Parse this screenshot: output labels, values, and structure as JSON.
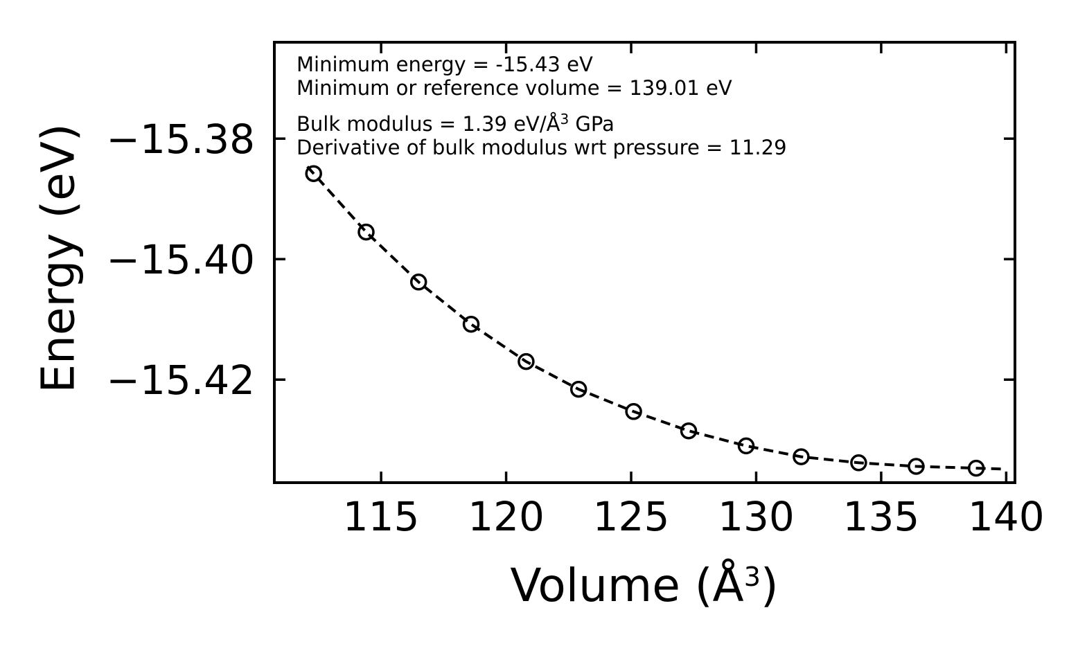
{
  "figure": {
    "background_color": "#ffffff",
    "foreground_color": "#000000"
  },
  "annotation": {
    "line1": "Minimum energy = -15.43 eV",
    "line2": "Minimum or reference volume = 139.01 eV",
    "line3_pre": "Bulk modulus = 1.39 eV/Å",
    "line3_sup": "3",
    "line3_post": " GPa",
    "line4": "Derivative of bulk modulus wrt pressure = 11.29"
  },
  "axes": {
    "xlabel_pre": "Volume (Å",
    "xlabel_sup": "3",
    "xlabel_post": ")",
    "ylabel": "Energy (eV)"
  },
  "chart_data": {
    "type": "scatter",
    "title": "",
    "xlabel": "Volume (Å³)",
    "ylabel": "Energy (eV)",
    "x": [
      112.3,
      114.4,
      116.5,
      118.6,
      120.8,
      122.9,
      125.1,
      127.3,
      129.6,
      131.8,
      134.1,
      136.4,
      138.8
    ],
    "y": [
      -15.3858,
      -15.3955,
      -15.4038,
      -15.4108,
      -15.417,
      -15.4216,
      -15.4253,
      -15.4285,
      -15.431,
      -15.4328,
      -15.4338,
      -15.4344,
      -15.4347
    ],
    "xlim": [
      110.73,
      140.35
    ],
    "ylim": [
      -15.4371,
      -15.364
    ],
    "xticks": [
      115,
      120,
      125,
      130,
      135,
      140
    ],
    "xtick_labels": [
      "115",
      "120",
      "125",
      "130",
      "135",
      "140"
    ],
    "yticks": [
      -15.38,
      -15.4,
      -15.42
    ],
    "ytick_labels": [
      "−15.38",
      "−15.40",
      "−15.42"
    ],
    "grid": false,
    "legend": "none",
    "line_style": "dashed",
    "marker": "open-circle",
    "line_color": "#000000",
    "marker_color": "#000000",
    "fit_params": {
      "minimum_energy_eV": -15.43,
      "reference_volume": 139.01,
      "bulk_modulus": 1.39,
      "bulk_modulus_derivative_wrt_pressure": 11.29
    }
  }
}
